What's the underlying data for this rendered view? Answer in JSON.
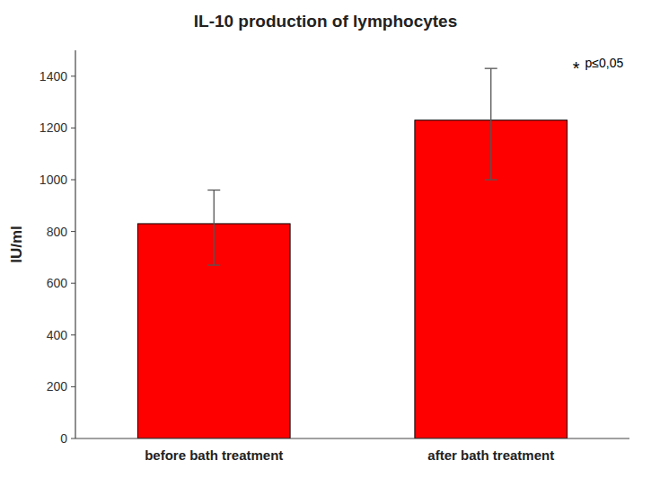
{
  "chart_data": {
    "type": "bar",
    "title": "IL-10 production of lymphocytes",
    "categories": [
      "before bath treatment",
      "after bath treatment"
    ],
    "values": [
      830,
      1230
    ],
    "errors_upper": [
      130,
      200
    ],
    "errors_lower": [
      160,
      230
    ],
    "color": "#ff0000",
    "ylabel": "IU/ml",
    "ylim": [
      0,
      1500
    ],
    "yticks": [
      0,
      200,
      400,
      600,
      800,
      1000,
      1200,
      1400
    ],
    "annotations": [
      "*",
      "p≤0,05"
    ],
    "grid": false
  }
}
